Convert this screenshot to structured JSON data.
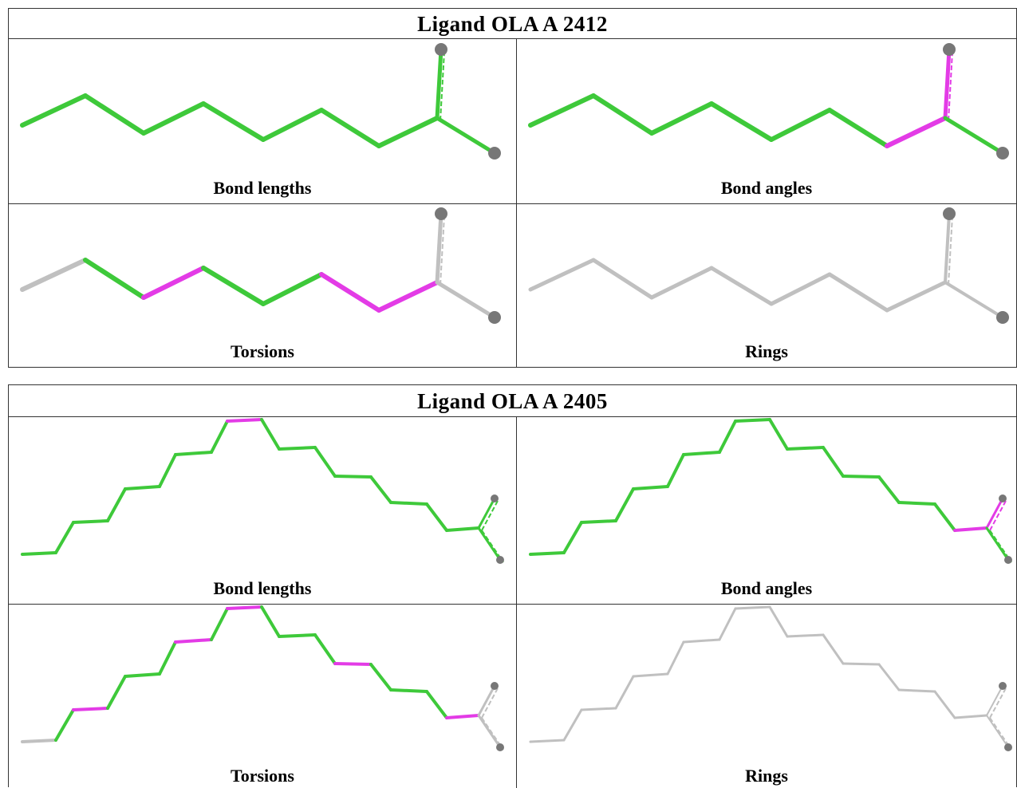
{
  "panels": [
    {
      "title": "Ligand OLA A 2412",
      "cells": [
        "Bond lengths",
        "Bond angles",
        "Torsions",
        "Rings"
      ]
    },
    {
      "title": "Ligand OLA A 2405",
      "cells": [
        "Bond lengths",
        "Bond angles",
        "Torsions",
        "Rings"
      ]
    }
  ]
}
